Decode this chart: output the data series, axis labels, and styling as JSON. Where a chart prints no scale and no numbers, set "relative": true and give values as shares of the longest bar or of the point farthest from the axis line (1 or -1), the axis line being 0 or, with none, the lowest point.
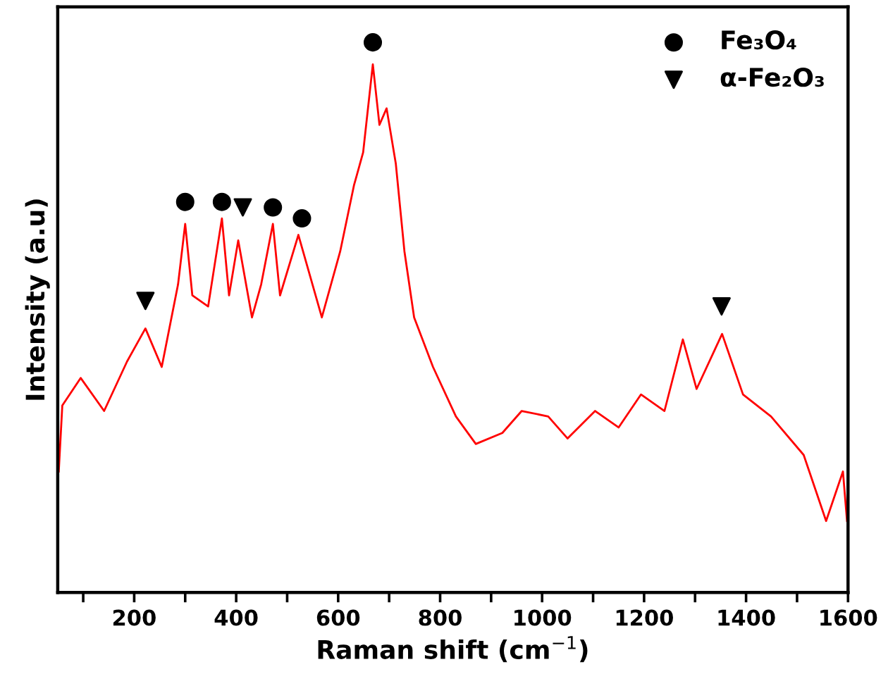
{
  "chart_data": {
    "type": "line",
    "relative": true,
    "xlabel": "Raman shift (cm$^{−1}$)",
    "ylabel": "Intensity (a.u)",
    "xlim": [
      50,
      1600
    ],
    "xticks": [
      {
        "value": 100,
        "label": null
      },
      200,
      {
        "value": 300,
        "label": null
      },
      400,
      {
        "value": 500,
        "label": null
      },
      600,
      {
        "value": 700,
        "label": null
      },
      800,
      {
        "value": 900,
        "label": null
      },
      1000,
      {
        "value": 1100,
        "label": null
      },
      1200,
      {
        "value": 1300,
        "label": null
      },
      1400,
      {
        "value": 1500,
        "label": null
      },
      1600
    ],
    "tick_labels": "x",
    "grid": false,
    "legend": "top right",
    "series": [
      {
        "color": "#ff0000",
        "marker": "none",
        "line_style": "solid",
        "x": [
          52,
          59,
          95,
          141,
          186,
          222,
          254,
          286,
          300,
          314,
          345,
          372,
          386,
          404,
          431,
          449,
          472,
          486,
          522,
          568,
          604,
          631,
          649,
          668,
          681,
          695,
          713,
          730,
          749,
          786,
          831,
          870,
          922,
          960,
          1012,
          1050,
          1104,
          1150,
          1194,
          1240,
          1276,
          1303,
          1353,
          1394,
          1449,
          1513,
          1557,
          1590,
          1598
        ],
        "values": [
          0.22,
          0.34,
          0.39,
          0.33,
          0.42,
          0.48,
          0.41,
          0.56,
          0.67,
          0.54,
          0.52,
          0.68,
          0.54,
          0.64,
          0.5,
          0.56,
          0.67,
          0.54,
          0.65,
          0.5,
          0.62,
          0.74,
          0.8,
          0.96,
          0.85,
          0.88,
          0.78,
          0.62,
          0.5,
          0.41,
          0.32,
          0.27,
          0.29,
          0.33,
          0.32,
          0.28,
          0.33,
          0.3,
          0.36,
          0.33,
          0.46,
          0.37,
          0.47,
          0.36,
          0.32,
          0.25,
          0.13,
          0.22,
          0.13
        ]
      },
      {
        "type": "scatter",
        "name": "Fe₃O₄",
        "color": "#000000",
        "marker": "circle",
        "x": [
          300,
          372,
          472,
          529,
          668
        ],
        "values": [
          0.71,
          0.71,
          0.7,
          0.68,
          1.0
        ]
      },
      {
        "type": "scatter",
        "name": "α-Fe₂O₃",
        "color": "#000000",
        "marker": "triangle",
        "x": [
          222,
          413,
          1352
        ],
        "values": [
          0.53,
          0.7,
          0.52
        ]
      }
    ]
  }
}
